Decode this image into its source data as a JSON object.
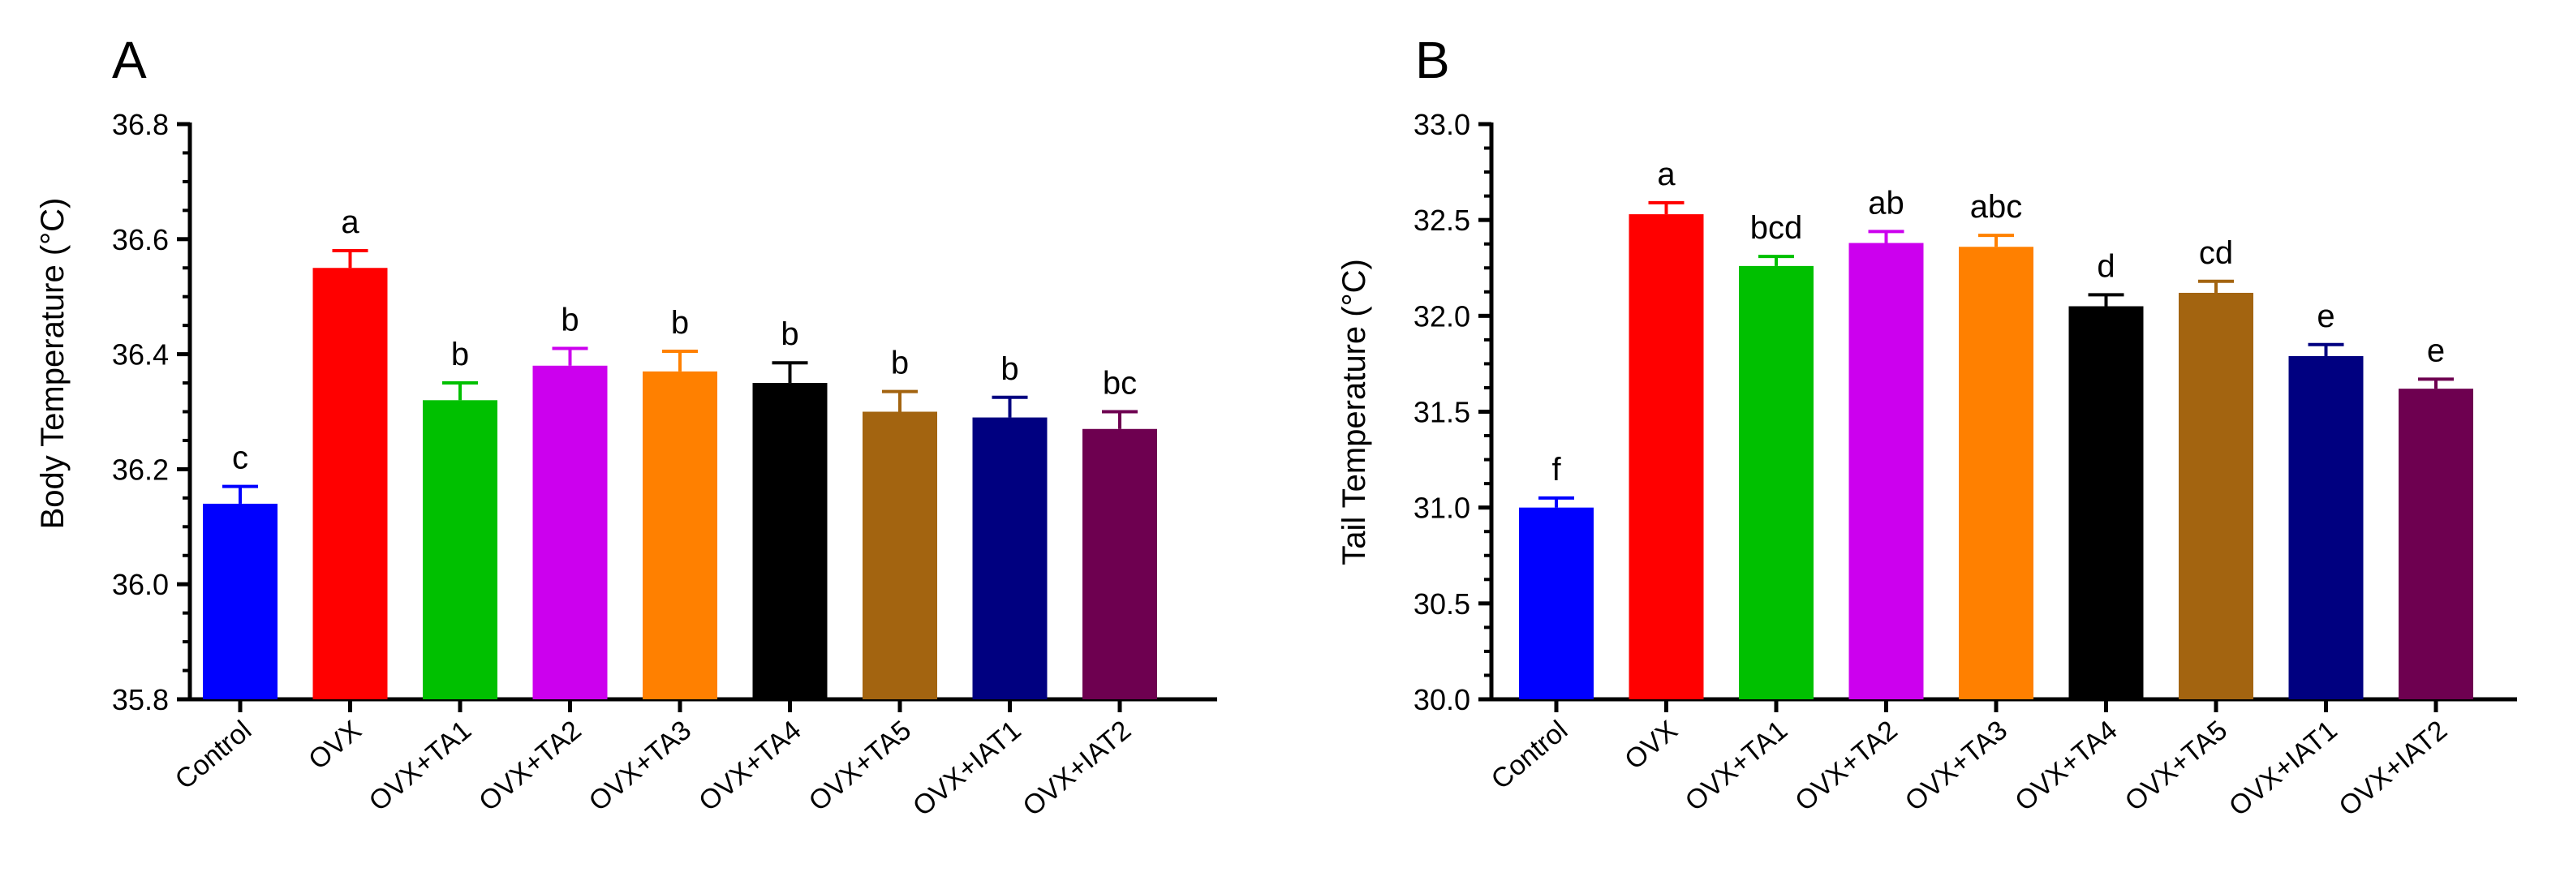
{
  "chart_data": [
    {
      "type": "bar",
      "panel": "A",
      "title": "",
      "xlabel": "",
      "ylabel": "Body Temperature (°C)",
      "ylim": [
        35.8,
        36.8
      ],
      "yticks": [
        "35.8",
        "36.0",
        "36.2",
        "36.4",
        "36.6",
        "36.8"
      ],
      "grid": false,
      "categories": [
        "Control",
        "OVX",
        "OVX+TA1",
        "OVX+TA2",
        "OVX+TA3",
        "OVX+TA4",
        "OVX+TA5",
        "OVX+IAT1",
        "OVX+IAT2"
      ],
      "values": [
        36.14,
        36.55,
        36.32,
        36.38,
        36.37,
        36.35,
        36.3,
        36.29,
        36.27
      ],
      "errors": [
        0.03,
        0.03,
        0.03,
        0.03,
        0.035,
        0.035,
        0.035,
        0.035,
        0.03
      ],
      "significance": [
        "c",
        "a",
        "b",
        "b",
        "b",
        "b",
        "b",
        "b",
        "bc"
      ],
      "colors": [
        "#0000ff",
        "#ff0000",
        "#00c000",
        "#cc00ee",
        "#ff8000",
        "#000000",
        "#a36410",
        "#000080",
        "#6e0050"
      ]
    },
    {
      "type": "bar",
      "panel": "B",
      "title": "",
      "xlabel": "",
      "ylabel": "Tail Temperature (°C)",
      "ylim": [
        30.0,
        33.0
      ],
      "yticks": [
        "30.0",
        "30.5",
        "31.0",
        "31.5",
        "32.0",
        "32.5",
        "33.0"
      ],
      "grid": false,
      "categories": [
        "Control",
        "OVX",
        "OVX+TA1",
        "OVX+TA2",
        "OVX+TA3",
        "OVX+TA4",
        "OVX+TA5",
        "OVX+IAT1",
        "OVX+IAT2"
      ],
      "values": [
        31.0,
        32.53,
        32.26,
        32.38,
        32.36,
        32.05,
        32.12,
        31.79,
        31.62
      ],
      "errors": [
        0.05,
        0.06,
        0.05,
        0.06,
        0.06,
        0.06,
        0.06,
        0.06,
        0.05
      ],
      "significance": [
        "f",
        "a",
        "bcd",
        "ab",
        "abc",
        "d",
        "cd",
        "e",
        "e"
      ],
      "colors": [
        "#0000ff",
        "#ff0000",
        "#00c000",
        "#cc00ee",
        "#ff8000",
        "#000000",
        "#a36410",
        "#000080",
        "#6e0050"
      ]
    }
  ]
}
